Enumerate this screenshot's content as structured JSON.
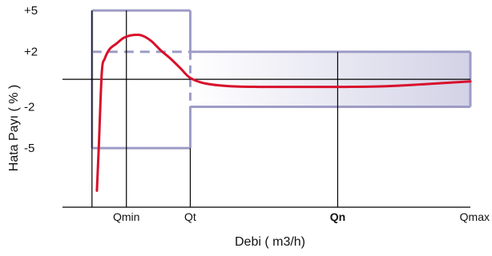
{
  "chart_data": {
    "type": "line",
    "title": "",
    "xlabel": "Debi ( m3/h)",
    "ylabel": "Hata Payı ( % )",
    "y_ticks": [
      {
        "value": 5,
        "label": "+5"
      },
      {
        "value": 2,
        "label": "+2"
      },
      {
        "value": -2,
        "label": "-2"
      },
      {
        "value": -5,
        "label": "-5"
      }
    ],
    "x_ticks": [
      {
        "key": "qmin",
        "label": "Qmin",
        "bold": false
      },
      {
        "key": "qt",
        "label": "Qt",
        "bold": false
      },
      {
        "key": "qn",
        "label": "Qn",
        "bold": true
      },
      {
        "key": "qmax",
        "label": "Qmax",
        "bold": false
      }
    ],
    "x_tick_positions": {
      "qmin": 0.35,
      "qt": 1.0,
      "qn": 2.5,
      "qmax": 3.85
    },
    "xlim": [
      -0.3,
      3.85
    ],
    "ylim": [
      -9.3,
      5.3
    ],
    "flow_range_start": 0.0,
    "limits": {
      "low_flow": {
        "x": [
          0.0,
          1.0
        ],
        "y": [
          -5,
          5
        ]
      },
      "high_flow": {
        "x": [
          1.0,
          3.85
        ],
        "y": [
          -2,
          2
        ]
      }
    },
    "series": [
      {
        "color": "#d8102b",
        "x": [
          0.05,
          0.07,
          0.1,
          0.13,
          0.18,
          0.25,
          0.32,
          0.4,
          0.5,
          0.6,
          0.7,
          0.8,
          0.9,
          1.0,
          1.15,
          1.4,
          1.7,
          2.0,
          2.3,
          2.6,
          3.0,
          3.4,
          3.85
        ],
        "y": [
          -8.1,
          -4.8,
          0.5,
          1.5,
          2.2,
          2.6,
          3.0,
          3.2,
          3.2,
          2.8,
          2.1,
          1.5,
          0.8,
          0.1,
          -0.3,
          -0.5,
          -0.55,
          -0.55,
          -0.55,
          -0.55,
          -0.5,
          -0.35,
          -0.15
        ]
      }
    ],
    "colors": {
      "limit_box": "#9d9cc6",
      "band_fill_start": "#ffffff",
      "band_fill_end": "#d3d2e6",
      "axis": "#000000",
      "curve": "#d8102b"
    },
    "grid": false,
    "legend": "none"
  }
}
